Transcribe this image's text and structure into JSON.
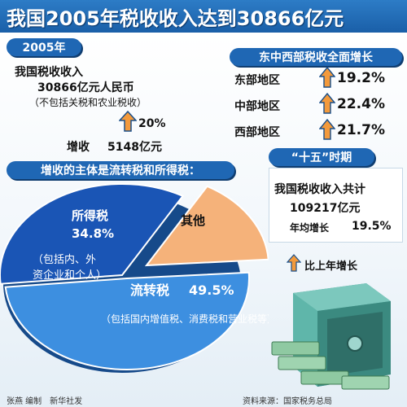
{
  "header": {
    "title": "我国2005年税收收入达到30866亿元"
  },
  "left_panel": {
    "year_badge": "2005年",
    "line1": "我国税收收入",
    "line2": "30866亿元人民币",
    "line3": "（不包括关税和农业税收）",
    "growth_pct": "20%",
    "increase_label": "增收",
    "increase_value": "5148亿元"
  },
  "regions": {
    "title": "东中西部税收全面增长",
    "items": [
      {
        "name": "东部地区",
        "value": "19.2%"
      },
      {
        "name": "中部地区",
        "value": "22.4%"
      },
      {
        "name": "西部地区",
        "value": "21.7%"
      }
    ]
  },
  "plan": {
    "badge": "“十五”时期",
    "line1": "我国税收收入共计",
    "total": "109217亿元",
    "avg_label": "年均增长",
    "avg_value": "19.5%"
  },
  "legend": {
    "arrow_text": "比上年增长"
  },
  "chart_data": {
    "type": "pie",
    "title": "增收的主体是流转税和所得税：",
    "slices": [
      {
        "name": "流转税",
        "value": 49.5,
        "value_label": "49.5%",
        "note": "（包括国内增值税、消费税和营业税等）",
        "color": "#3d8fe0"
      },
      {
        "name": "所得税",
        "value": 34.8,
        "value_label": "34.8%",
        "note_line1": "（包括内、外",
        "note_line2": "资企业和个人）",
        "color": "#1a55b5"
      },
      {
        "name": "其他",
        "value": 15.7,
        "value_label": "",
        "color": "#f5b27a"
      }
    ]
  },
  "footer": {
    "left": "张燕 编制　新华社发",
    "right": "资料来源：国家税务总局"
  },
  "colors": {
    "header": "#1a5fa8",
    "badge": "#1f67b4",
    "arrow": "#f39a3c"
  }
}
